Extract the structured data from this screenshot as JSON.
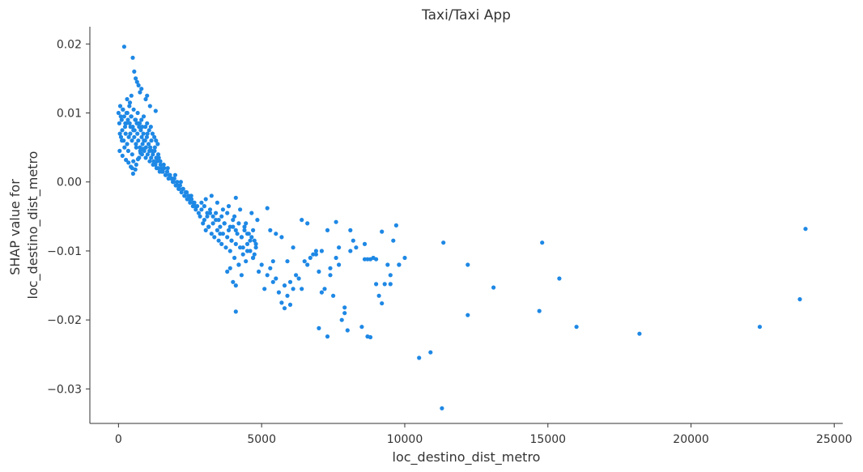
{
  "chart_data": {
    "type": "scatter",
    "title": "Taxi/Taxi App",
    "xlabel": "loc_destino_dist_metro",
    "ylabel_lines": [
      "SHAP value for",
      "loc_destino_dist_metro"
    ],
    "xlim": [
      -1000,
      25300
    ],
    "ylim": [
      -0.035,
      0.0225
    ],
    "xticks": [
      0,
      5000,
      10000,
      15000,
      20000,
      25000
    ],
    "xtick_labels": [
      "0",
      "5000",
      "10000",
      "15000",
      "20000",
      "25000"
    ],
    "yticks": [
      0.02,
      0.01,
      0.0,
      -0.01,
      -0.02,
      -0.03
    ],
    "ytick_labels": [
      "0.02",
      "0.01",
      "0.00",
      "−0.01",
      "−0.02",
      "−0.03"
    ],
    "grid": false,
    "point_color": "#1e88e5",
    "axis_color": "#333333",
    "x": [
      0,
      30,
      60,
      90,
      110,
      130,
      160,
      180,
      200,
      230,
      250,
      280,
      300,
      330,
      360,
      390,
      410,
      440,
      470,
      500,
      520,
      550,
      580,
      610,
      640,
      660,
      690,
      720,
      750,
      780,
      810,
      840,
      870,
      900,
      930,
      960,
      990,
      1020,
      1050,
      1080,
      1110,
      1140,
      1170,
      1200,
      1230,
      1260,
      1290,
      1320,
      1350,
      1380,
      1410,
      1440,
      1470,
      1500,
      1550,
      1600,
      1650,
      1700,
      1750,
      1800,
      1850,
      1900,
      1950,
      2000,
      2050,
      2100,
      2150,
      2200,
      2250,
      2300,
      2350,
      2400,
      2450,
      2500,
      2550,
      2600,
      2650,
      2700,
      2750,
      2800,
      50,
      120,
      210,
      270,
      340,
      420,
      480,
      560,
      620,
      700,
      760,
      830,
      890,
      950,
      1010,
      1090,
      1150,
      1210,
      1270,
      1330,
      1390,
      1460,
      1520,
      1580,
      1640,
      1720,
      1780,
      1860,
      1920,
      1980,
      2060,
      2120,
      2180,
      2260,
      2320,
      2380,
      2460,
      2540,
      2620,
      2680,
      80,
      150,
      240,
      310,
      380,
      450,
      530,
      600,
      670,
      740,
      800,
      880,
      940,
      1000,
      1070,
      1130,
      1190,
      1250,
      1310,
      1370,
      200,
      500,
      600,
      700,
      550,
      450,
      650,
      750,
      950,
      1100,
      1300,
      300,
      400,
      800,
      1000,
      480,
      520,
      620,
      720,
      820,
      40,
      140,
      260,
      350,
      430,
      510,
      590,
      680,
      770,
      860,
      2850,
      2900,
      2950,
      3000,
      3050,
      3100,
      3150,
      3200,
      3250,
      3300,
      3350,
      3400,
      3450,
      3500,
      3550,
      3600,
      3650,
      3700,
      3750,
      3800,
      3850,
      3900,
      3950,
      4000,
      4050,
      4100,
      4150,
      4200,
      4250,
      4300,
      4350,
      4400,
      4450,
      4500,
      4550,
      4600,
      4650,
      4700,
      4750,
      4800,
      2900,
      3000,
      3100,
      3200,
      3300,
      3400,
      3500,
      3600,
      3700,
      3800,
      3900,
      4000,
      4100,
      4200,
      4300,
      4400,
      4500,
      4600,
      4700,
      4800,
      3050,
      3250,
      3450,
      3650,
      3850,
      4050,
      4250,
      4450,
      4650,
      4850,
      3150,
      3550,
      3950,
      4350,
      4750,
      4100,
      3800,
      4000,
      4100,
      4200,
      3900,
      4300,
      4500,
      4700,
      4900,
      5000,
      5100,
      5200,
      5300,
      5400,
      5500,
      5600,
      5700,
      5800,
      5900,
      6000,
      6100,
      6200,
      6300,
      6400,
      6500,
      6600,
      6700,
      6800,
      6900,
      7000,
      7100,
      7200,
      7300,
      7400,
      7500,
      7600,
      7700,
      7800,
      7900,
      8000,
      8100,
      8300,
      8500,
      8600,
      8700,
      8800,
      8900,
      9000,
      9100,
      9200,
      9300,
      9400,
      9500,
      9600,
      9700,
      9800,
      10000,
      5200,
      5500,
      5900,
      6400,
      6900,
      7300,
      7700,
      8200,
      8600,
      9000,
      5300,
      5700,
      6100,
      6600,
      7100,
      7600,
      8100,
      8700,
      9200,
      4100,
      5400,
      5800,
      6000,
      7000,
      7400,
      7900,
      8800,
      9500,
      9800,
      11300,
      10500,
      10900,
      11350,
      12200,
      12200,
      13100,
      14700,
      14800,
      15400,
      16000,
      18200,
      22400,
      23800,
      24000
    ],
    "y": [
      0.01,
      0.0085,
      0.011,
      0.0065,
      0.009,
      0.0075,
      0.0105,
      0.006,
      0.0095,
      0.008,
      0.007,
      0.01,
      0.0055,
      0.009,
      0.0065,
      0.0085,
      0.007,
      0.0095,
      0.006,
      0.008,
      0.0075,
      0.0065,
      0.009,
      0.0055,
      0.0085,
      0.007,
      0.006,
      0.008,
      0.005,
      0.0075,
      0.0065,
      0.0055,
      0.007,
      0.0045,
      0.006,
      0.005,
      0.0065,
      0.004,
      0.0055,
      0.0045,
      0.005,
      0.0035,
      0.0045,
      0.004,
      0.003,
      0.0045,
      0.0025,
      0.0035,
      0.003,
      0.002,
      0.0035,
      0.0015,
      0.0025,
      0.002,
      0.0015,
      0.002,
      0.001,
      0.0015,
      0.0005,
      0.001,
      0.0005,
      0.0,
      0.0005,
      -0.0005,
      0.0,
      -0.001,
      -0.0005,
      -0.0015,
      -0.001,
      -0.002,
      -0.0015,
      -0.0025,
      -0.002,
      -0.003,
      -0.0025,
      -0.0035,
      -0.003,
      -0.004,
      -0.0035,
      -0.0045,
      0.007,
      0.006,
      0.005,
      0.0085,
      0.0045,
      0.008,
      0.004,
      0.0075,
      0.005,
      0.0085,
      0.0045,
      0.008,
      0.006,
      0.0035,
      0.007,
      0.003,
      0.006,
      0.0025,
      0.005,
      0.002,
      0.004,
      0.003,
      0.0015,
      0.0025,
      0.001,
      0.002,
      0.001,
      0.0005,
      0.0,
      0.001,
      -0.0005,
      -0.001,
      0.0,
      -0.001,
      -0.002,
      -0.0015,
      -0.0025,
      -0.002,
      -0.003,
      -0.0035,
      0.0095,
      0.0105,
      0.0085,
      0.01,
      0.011,
      0.0095,
      0.0105,
      0.009,
      0.01,
      0.0085,
      0.009,
      0.0095,
      0.008,
      0.0085,
      0.0075,
      0.008,
      0.007,
      0.0065,
      0.006,
      0.0055,
      0.0196,
      0.018,
      0.015,
      0.014,
      0.016,
      0.0125,
      0.0145,
      0.013,
      0.012,
      0.011,
      0.0103,
      0.012,
      0.0115,
      0.0135,
      0.0125,
      0.002,
      0.003,
      0.0025,
      0.0035,
      0.004,
      0.0045,
      0.0038,
      0.0032,
      0.0028,
      0.0022,
      0.0012,
      0.0018,
      0.0033,
      0.0042,
      0.0048,
      -0.005,
      -0.004,
      -0.006,
      -0.0055,
      -0.007,
      -0.005,
      -0.0065,
      -0.0045,
      -0.0075,
      -0.006,
      -0.008,
      -0.0055,
      -0.007,
      -0.0085,
      -0.0065,
      -0.009,
      -0.0075,
      -0.006,
      -0.0095,
      -0.008,
      -0.007,
      -0.01,
      -0.0085,
      -0.0065,
      -0.011,
      -0.009,
      -0.0075,
      -0.012,
      -0.0095,
      -0.008,
      -0.0105,
      -0.007,
      -0.0115,
      -0.009,
      -0.0075,
      -0.01,
      -0.008,
      -0.011,
      -0.0085,
      -0.0095,
      -0.003,
      -0.0035,
      -0.0045,
      -0.004,
      -0.005,
      -0.0045,
      -0.0055,
      -0.005,
      -0.006,
      -0.0045,
      -0.0065,
      -0.0055,
      -0.007,
      -0.006,
      -0.008,
      -0.0065,
      -0.0075,
      -0.0085,
      -0.007,
      -0.009,
      -0.0025,
      -0.002,
      -0.003,
      -0.004,
      -0.0035,
      -0.005,
      -0.004,
      -0.006,
      -0.0045,
      -0.0055,
      -0.0065,
      -0.0075,
      -0.0085,
      -0.0095,
      -0.0105,
      -0.0188,
      -0.013,
      -0.0145,
      -0.015,
      -0.012,
      -0.0125,
      -0.0135,
      -0.01,
      -0.011,
      -0.013,
      -0.012,
      -0.0155,
      -0.0135,
      -0.0125,
      -0.0115,
      -0.014,
      -0.016,
      -0.0175,
      -0.015,
      -0.0165,
      -0.0145,
      -0.0155,
      -0.0135,
      -0.014,
      -0.0155,
      -0.0115,
      -0.012,
      -0.011,
      -0.0105,
      -0.01,
      -0.0212,
      -0.016,
      -0.0155,
      -0.0224,
      -0.0135,
      -0.0165,
      -0.011,
      -0.0095,
      -0.02,
      -0.0182,
      -0.0215,
      -0.01,
      -0.0095,
      -0.021,
      -0.0112,
      -0.0224,
      -0.0112,
      -0.011,
      -0.0148,
      -0.0165,
      -0.0176,
      -0.0148,
      -0.012,
      -0.0135,
      -0.0085,
      -0.0063,
      -0.012,
      -0.011,
      -0.0038,
      -0.0075,
      -0.0115,
      -0.0055,
      -0.0105,
      -0.007,
      -0.012,
      -0.0085,
      -0.009,
      -0.0112,
      -0.007,
      -0.008,
      -0.0095,
      -0.006,
      -0.01,
      -0.0058,
      -0.007,
      -0.0112,
      -0.0072,
      -0.0023,
      -0.0145,
      -0.0183,
      -0.0178,
      -0.013,
      -0.0125,
      -0.019,
      -0.0225,
      -0.0148,
      -0.012,
      -0.0328,
      -0.0255,
      -0.0247,
      -0.0088,
      -0.0193,
      -0.012,
      -0.0153,
      -0.0187,
      -0.0088,
      -0.014,
      -0.021,
      -0.022,
      -0.021,
      -0.017,
      -0.0068
    ]
  }
}
